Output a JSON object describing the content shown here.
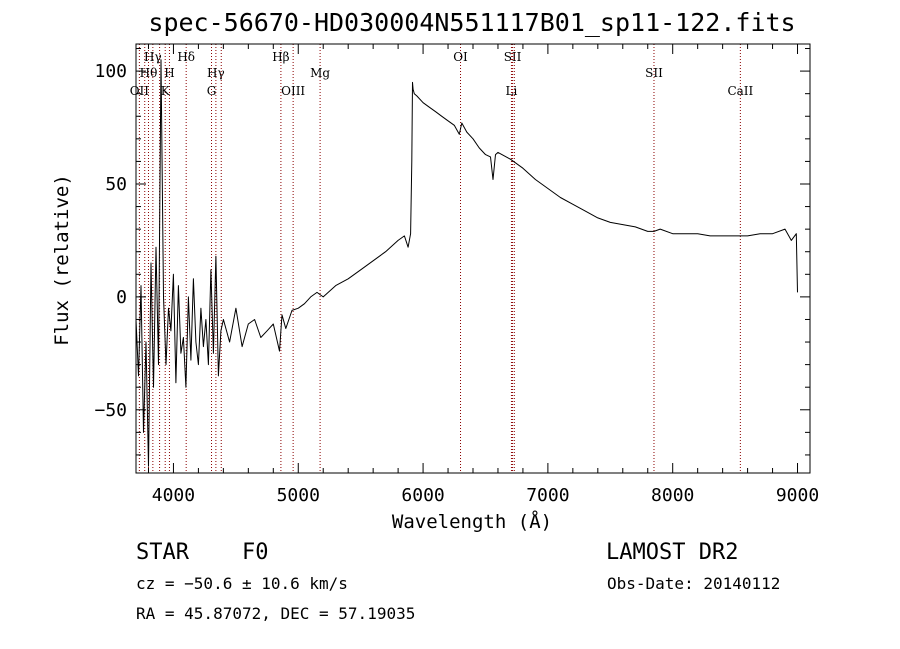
{
  "chart_data": {
    "type": "line",
    "title": "spec-56670-HD030004N551117B01_sp11-122.fits",
    "xlabel": "Wavelength (Å)",
    "ylabel": "Flux (relative)",
    "xlim": [
      3700,
      9100
    ],
    "ylim": [
      -78,
      112
    ],
    "xticks": [
      4000,
      5000,
      6000,
      7000,
      8000,
      9000
    ],
    "yticks": [
      -50,
      0,
      50,
      100
    ],
    "ytick_labels": [
      "−50",
      "0",
      "50",
      "100"
    ],
    "grid": false,
    "series": [
      {
        "x": [
          3700,
          3720,
          3740,
          3760,
          3780,
          3800,
          3820,
          3840,
          3860,
          3880,
          3900,
          3920,
          3940,
          3960,
          3980,
          4000,
          4020,
          4040,
          4060,
          4080,
          4100,
          4120,
          4140,
          4160,
          4180,
          4200,
          4220,
          4240,
          4260,
          4280,
          4300,
          4320,
          4340,
          4360,
          4380,
          4400,
          4450,
          4500,
          4550,
          4600,
          4650,
          4700,
          4750,
          4800,
          4850,
          4870,
          4900,
          4950,
          5000,
          5050,
          5100,
          5150,
          5200,
          5300,
          5400,
          5500,
          5600,
          5700,
          5800,
          5850,
          5880,
          5900,
          5910,
          5915,
          5920,
          5930,
          5950,
          6000,
          6050,
          6100,
          6150,
          6200,
          6250,
          6290,
          6310,
          6350,
          6400,
          6450,
          6500,
          6540,
          6560,
          6580,
          6600,
          6700,
          6800,
          6900,
          7000,
          7100,
          7200,
          7300,
          7400,
          7500,
          7600,
          7700,
          7800,
          7850,
          7900,
          8000,
          8100,
          8200,
          8300,
          8400,
          8500,
          8600,
          8700,
          8800,
          8900,
          8950,
          8990,
          9000
        ],
        "y": [
          -10,
          -35,
          5,
          -60,
          -20,
          -75,
          15,
          -40,
          22,
          -30,
          105,
          0,
          -30,
          -5,
          -15,
          10,
          -38,
          5,
          -25,
          -18,
          -40,
          0,
          -28,
          8,
          -20,
          -30,
          -5,
          -22,
          -10,
          -30,
          12,
          -25,
          18,
          -35,
          -15,
          -10,
          -20,
          -5,
          -22,
          -12,
          -10,
          -18,
          -15,
          -12,
          -24,
          -8,
          -14,
          -6,
          -5,
          -3,
          0,
          2,
          0,
          5,
          8,
          12,
          16,
          20,
          25,
          27,
          22,
          28,
          60,
          95,
          92,
          90,
          89,
          86,
          84,
          82,
          80,
          78,
          76,
          72,
          77,
          73,
          70,
          66,
          63,
          62,
          52,
          63,
          64,
          61,
          57,
          52,
          48,
          44,
          41,
          38,
          35,
          33,
          32,
          31,
          29,
          29,
          30,
          28,
          28,
          28,
          27,
          27,
          27,
          27,
          28,
          28,
          30,
          25,
          28,
          2
        ]
      }
    ],
    "lines": [
      {
        "name": "Hγ",
        "wl": 3835,
        "row": 1
      },
      {
        "name": "Hθ",
        "wl": 3800,
        "row": 2
      },
      {
        "name": "OII",
        "wl": 3727,
        "row": 3
      },
      {
        "name": "Hδ",
        "wl": 4102,
        "row": 1
      },
      {
        "name": "H",
        "wl": 3968,
        "row": 2
      },
      {
        "name": "K",
        "wl": 3934,
        "row": 3
      },
      {
        "name": "Hγ",
        "wl": 4340,
        "row": 2
      },
      {
        "name": "G",
        "wl": 4305,
        "row": 3
      },
      {
        "name": "Hβ",
        "wl": 4861,
        "row": 1
      },
      {
        "name": "OIII",
        "wl": 4959,
        "row": 3
      },
      {
        "name": "Mg",
        "wl": 5175,
        "row": 2
      },
      {
        "name": "OI",
        "wl": 6300,
        "row": 1
      },
      {
        "name": "SII",
        "wl": 6717,
        "row": 1
      },
      {
        "name": "Li",
        "wl": 6708,
        "row": 3
      },
      {
        "name": "SII",
        "wl": 7850,
        "row": 2
      },
      {
        "name": "CaII",
        "wl": 8542,
        "row": 3
      }
    ],
    "extra_lines_wl": [
      3770,
      3889,
      6731,
      4383
    ]
  },
  "info": {
    "object_class": "STAR",
    "subclass": "F0",
    "survey": "LAMOST DR2",
    "cz": "cz = −50.6 ± 10.6 km/s",
    "obs_date": "Obs-Date: 20140112",
    "coords": "RA =  45.87072, DEC =  57.19035"
  }
}
